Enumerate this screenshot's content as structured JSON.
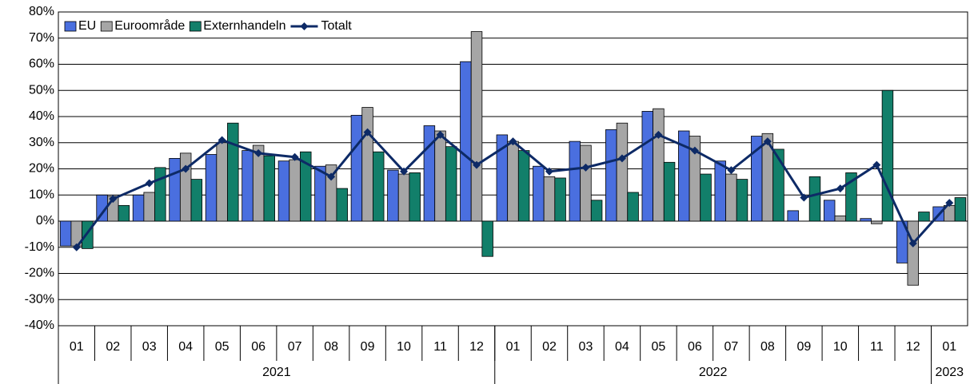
{
  "chart_data": {
    "type": "bar",
    "categories": [
      "01",
      "02",
      "03",
      "04",
      "05",
      "06",
      "07",
      "08",
      "09",
      "10",
      "11",
      "12",
      "01",
      "02",
      "03",
      "04",
      "05",
      "06",
      "07",
      "08",
      "09",
      "10",
      "11",
      "12",
      "01"
    ],
    "groups": [
      {
        "label": "2021",
        "count": 12
      },
      {
        "label": "2022",
        "count": 12
      },
      {
        "label": "2023",
        "count": 1
      }
    ],
    "series": [
      {
        "name": "EU",
        "type": "bar",
        "color": "#4a6fdf",
        "values": [
          -9.5,
          10,
          10,
          24,
          25.5,
          27,
          23,
          21,
          40.5,
          19.5,
          36.5,
          61,
          33,
          21,
          30.5,
          35,
          42,
          34.5,
          23,
          32.5,
          4,
          8,
          1,
          -16,
          5.5
        ]
      },
      {
        "name": "Euroområde",
        "type": "bar",
        "color": "#a6a6a6",
        "values": [
          -9.5,
          9.5,
          11,
          26,
          30,
          29,
          23.5,
          21.5,
          43.5,
          18,
          34.5,
          72.5,
          30.5,
          17,
          29,
          37.5,
          43,
          32.5,
          18,
          33.5,
          0,
          2,
          -1,
          -24.5,
          6
        ]
      },
      {
        "name": "Externhandeln",
        "type": "bar",
        "color": "#127f6a",
        "values": [
          -10.5,
          6,
          20.5,
          16,
          37.5,
          25,
          26.5,
          12.5,
          26.5,
          18.5,
          28.5,
          -13.5,
          27,
          16.5,
          8,
          11,
          22.5,
          18,
          16,
          27.5,
          17,
          18.5,
          50,
          3.5,
          9
        ]
      },
      {
        "name": "Totalt",
        "type": "line",
        "color": "#0d2a66",
        "values": [
          -10,
          8.5,
          14.5,
          20,
          31,
          26,
          24.5,
          17,
          34,
          19,
          33,
          21.5,
          30.5,
          19,
          20.5,
          24,
          33,
          27,
          19.5,
          30.5,
          9,
          12.5,
          21.5,
          -8.5,
          7
        ]
      }
    ],
    "ylim": [
      -40,
      80
    ],
    "yticks": [
      {
        "value": -40,
        "label": "-40%"
      },
      {
        "value": -30,
        "label": "-30%"
      },
      {
        "value": -20,
        "label": "-20%"
      },
      {
        "value": -10,
        "label": "-10%"
      },
      {
        "value": 0,
        "label": "0%"
      },
      {
        "value": 10,
        "label": "10%"
      },
      {
        "value": 20,
        "label": "20%"
      },
      {
        "value": 30,
        "label": "30%"
      },
      {
        "value": 40,
        "label": "40%"
      },
      {
        "value": 50,
        "label": "50%"
      },
      {
        "value": 60,
        "label": "60%"
      },
      {
        "value": 70,
        "label": "70%"
      },
      {
        "value": 80,
        "label": "80%"
      }
    ],
    "grid": true,
    "legend": "top-left"
  }
}
